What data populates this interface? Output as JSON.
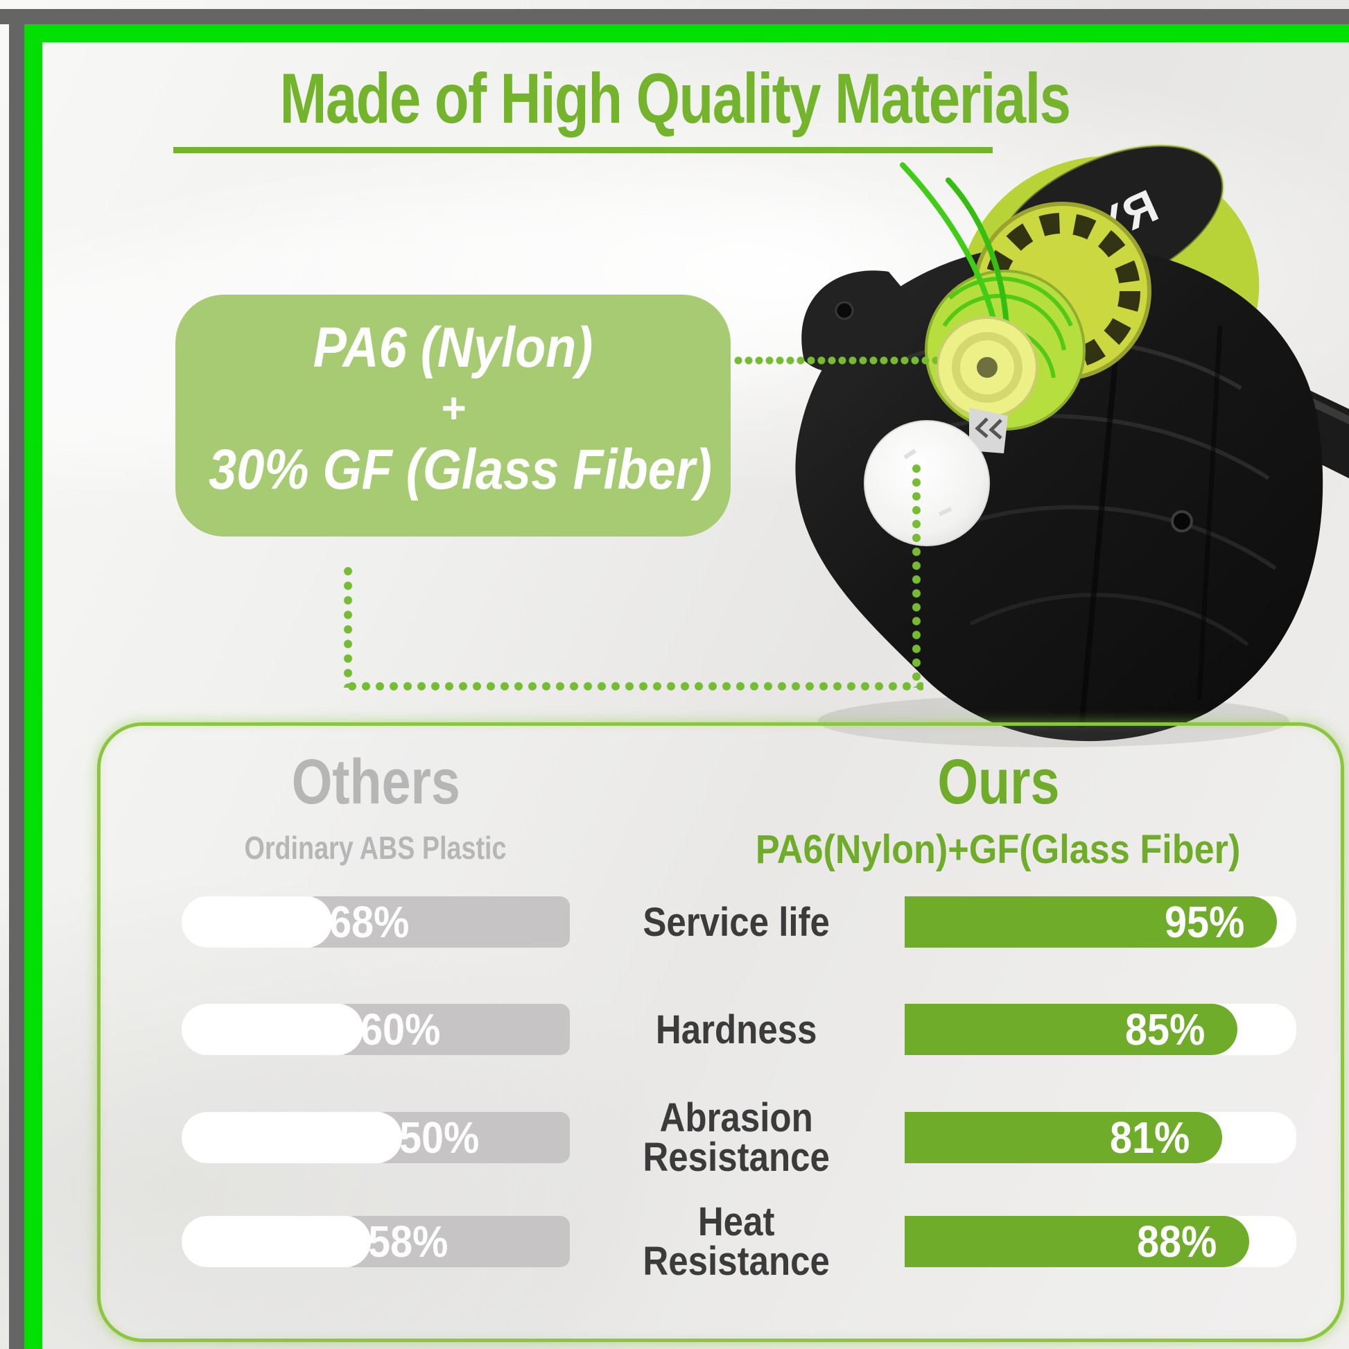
{
  "title": {
    "text": "Made of High Quality Materials"
  },
  "callout": {
    "line1": "PA6 (Nylon)",
    "plus": "+",
    "line2": "30% GF (Glass Fiber)"
  },
  "product": {
    "brand_mirrored": "OYЯ"
  },
  "comparison": {
    "left": {
      "header": "Others",
      "subheader": "Ordinary ABS Plastic"
    },
    "right": {
      "header": "Ours",
      "subheader": "PA6(Nylon)+GF(Glass Fiber)"
    },
    "rows": [
      {
        "label": "Service life",
        "others": {
          "value": 68,
          "text": "68%"
        },
        "ours": {
          "value": 95,
          "text": "95%"
        }
      },
      {
        "label": "Hardness",
        "others": {
          "value": 60,
          "text": "60%"
        },
        "ours": {
          "value": 85,
          "text": "85%"
        }
      },
      {
        "label": "Abrasion\nResistance",
        "others": {
          "value": 50,
          "text": "50%"
        },
        "ours": {
          "value": 81,
          "text": "81%"
        }
      },
      {
        "label": "Heat\nResistance",
        "others": {
          "value": 58,
          "text": "58%"
        },
        "ours": {
          "value": 88,
          "text": "88%"
        }
      }
    ]
  },
  "chart_data": {
    "type": "bar",
    "title": "Made of High Quality Materials",
    "categories": [
      "Service life",
      "Hardness",
      "Abrasion Resistance",
      "Heat Resistance"
    ],
    "series": [
      {
        "name": "Others (Ordinary ABS Plastic)",
        "values": [
          68,
          60,
          50,
          58
        ]
      },
      {
        "name": "Ours (PA6(Nylon)+GF(Glass Fiber))",
        "values": [
          95,
          85,
          81,
          88
        ]
      }
    ],
    "unit": "%",
    "xlabel": "",
    "ylabel": "",
    "ylim": [
      0,
      100
    ],
    "legend_position": "top",
    "grid": false
  },
  "colors": {
    "title_green": "#74B42C",
    "bar_green": "#6FAC29",
    "frame_green": "#02DF02",
    "border_gray": "#656565",
    "box_green": "#A7CB73",
    "dot_green": "#76BC33",
    "panel_border": "#8CC63F",
    "gray_fill": "#C6C4C5",
    "gray_text": "#B7B6B6",
    "label_dark": "#3B3B3B",
    "line_green": "#40CC17"
  }
}
